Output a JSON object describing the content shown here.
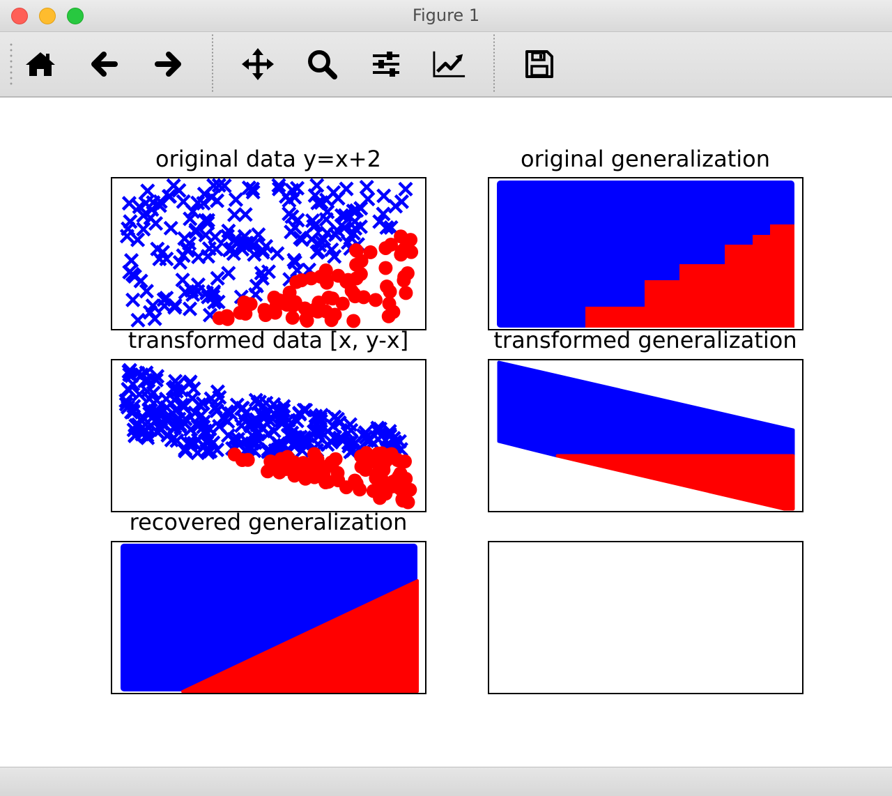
{
  "window": {
    "title": "Figure 1"
  },
  "toolbar": {
    "tools": [
      {
        "name": "home-icon",
        "label": "Home"
      },
      {
        "name": "back-icon",
        "label": "Back"
      },
      {
        "name": "forward-icon",
        "label": "Forward"
      },
      {
        "name": "pan-icon",
        "label": "Pan"
      },
      {
        "name": "zoom-icon",
        "label": "Zoom"
      },
      {
        "name": "subplots-icon",
        "label": "Subplots"
      },
      {
        "name": "customize-icon",
        "label": "Customize"
      },
      {
        "name": "save-icon",
        "label": "Save"
      }
    ]
  },
  "colors": {
    "class_a": "#0000ff",
    "class_b": "#ff0000",
    "axes": "#000000"
  },
  "chart_data": [
    {
      "type": "scatter",
      "title": "original data y=x+2",
      "series": [
        {
          "marker": "x",
          "color": "#0000ff",
          "region": "above line y=x+2"
        },
        {
          "marker": "o",
          "color": "#ff0000",
          "region": "below line y=x+2"
        }
      ]
    },
    {
      "type": "scatter",
      "title": "original generalization",
      "series": [
        {
          "marker": ".",
          "color": "#0000ff",
          "region": "upper-left (staircase boundary)"
        },
        {
          "marker": ".",
          "color": "#ff0000",
          "region": "lower-right (staircase boundary)"
        }
      ]
    },
    {
      "type": "scatter",
      "title": "transformed data [x, y-x]",
      "series": [
        {
          "marker": "x",
          "color": "#0000ff",
          "region": "above horizontal split"
        },
        {
          "marker": "o",
          "color": "#ff0000",
          "region": "below horizontal split"
        }
      ]
    },
    {
      "type": "scatter",
      "title": "transformed generalization",
      "series": [
        {
          "marker": ".",
          "color": "#0000ff",
          "region": "upper band"
        },
        {
          "marker": ".",
          "color": "#ff0000",
          "region": "lower band"
        }
      ]
    },
    {
      "type": "scatter",
      "title": "recovered generalization",
      "series": [
        {
          "marker": ".",
          "color": "#0000ff",
          "region": "above diagonal"
        },
        {
          "marker": ".",
          "color": "#ff0000",
          "region": "below diagonal"
        }
      ]
    },
    {
      "type": "scatter",
      "title": "",
      "series": []
    }
  ]
}
